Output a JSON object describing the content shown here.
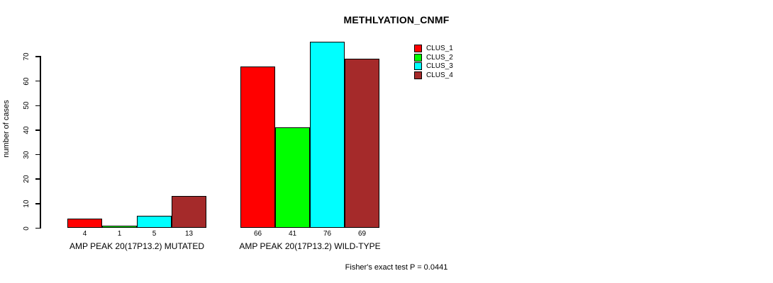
{
  "chart_data": {
    "type": "bar",
    "title": "METHLYATION_CNMF",
    "xlabel": "",
    "ylabel": "number of cases",
    "ylim": [
      0,
      76
    ],
    "yticks": [
      0,
      10,
      20,
      30,
      40,
      50,
      60,
      70
    ],
    "grid": false,
    "legend_position": "top-right",
    "categories": [
      "AMP PEAK 20(17P13.2) MUTATED",
      "AMP PEAK 20(17P13.2) WILD-TYPE"
    ],
    "series": [
      {
        "name": "CLUS_1",
        "color": "#FF0000",
        "values": [
          4,
          66
        ]
      },
      {
        "name": "CLUS_2",
        "color": "#00FF00",
        "values": [
          1,
          41
        ]
      },
      {
        "name": "CLUS_3",
        "color": "#00FFFF",
        "values": [
          5,
          76
        ]
      },
      {
        "name": "CLUS_4",
        "color": "#A52A2A",
        "values": [
          13,
          69
        ]
      }
    ],
    "bar_labels": [
      [
        "4",
        "1",
        "5",
        "13"
      ],
      [
        "66",
        "41",
        "76",
        "69"
      ]
    ],
    "annotation": "Fisher's exact test P = 0.0441"
  },
  "colors": {
    "background": "#FFFFFF",
    "axis": "#000000",
    "bar_border": "#000000",
    "text": "#000000"
  }
}
